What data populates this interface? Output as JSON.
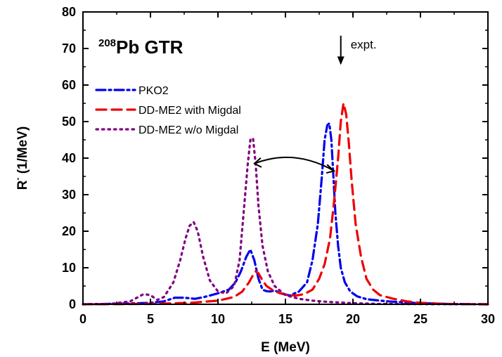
{
  "chart_data": {
    "type": "line",
    "title": {
      "superscript": "208",
      "text": "Pb GTR"
    },
    "xlabel": "E (MeV)",
    "ylabel": "R",
    "ylabel_superscript": "-",
    "ylabel_unit": " (1/MeV)",
    "xlim": [
      0,
      30
    ],
    "ylim": [
      0,
      80
    ],
    "xticks": [
      "0",
      "5",
      "10",
      "15",
      "20",
      "25",
      "30"
    ],
    "yticks": [
      "0",
      "10",
      "20",
      "30",
      "40",
      "50",
      "60",
      "70",
      "80"
    ],
    "legend_position": "upper-left",
    "grid": false,
    "annotations": [
      {
        "type": "arrow-down",
        "text": "expt.",
        "x": 19.1,
        "y_from": 73.5,
        "y_to": 65.5
      },
      {
        "type": "double-arrow",
        "from": [
          12.7,
          38.5
        ],
        "to": [
          18.6,
          36.5
        ]
      }
    ],
    "series": [
      {
        "name": "PKO2",
        "color": "#0000ee",
        "dash": "dashdot",
        "x": [
          0,
          3,
          5,
          6,
          6.8,
          7.5,
          8.3,
          9,
          10,
          10.8,
          11.3,
          11.7,
          12.1,
          12.4,
          12.7,
          13,
          13.3,
          13.6,
          13.9,
          14.2,
          14.7,
          15.3,
          16,
          16.6,
          17,
          17.4,
          17.7,
          17.9,
          18.1,
          18.25,
          18.4,
          18.55,
          18.7,
          18.9,
          19.1,
          19.4,
          19.8,
          20.3,
          21,
          22,
          23,
          24,
          25,
          27,
          30
        ],
        "values": [
          0,
          0.2,
          0.4,
          0.8,
          1.8,
          1.8,
          1.5,
          2,
          3,
          4,
          6,
          9,
          13,
          15,
          12,
          7,
          4,
          3.6,
          3.5,
          3.8,
          3,
          2.4,
          3.5,
          6,
          12,
          22,
          35,
          45,
          49,
          49.5,
          45,
          35,
          25,
          16,
          10,
          6,
          3.5,
          2.2,
          1.4,
          1,
          0.7,
          0.5,
          0.3,
          0.1,
          0
        ]
      },
      {
        "name": "DD-ME2 with Migdal",
        "color": "#ee0000",
        "dash": "dash",
        "x": [
          0,
          5,
          8,
          10,
          11.2,
          11.8,
          12.3,
          12.6,
          12.8,
          13,
          13.3,
          13.6,
          14,
          14.6,
          15.2,
          15.8,
          16.4,
          17,
          17.5,
          17.9,
          18.3,
          18.6,
          18.9,
          19.1,
          19.3,
          19.5,
          19.7,
          19.9,
          20.2,
          20.6,
          21,
          21.5,
          22,
          23,
          24,
          25,
          27,
          30
        ],
        "values": [
          0,
          0.1,
          0.4,
          1,
          2,
          3.5,
          6,
          8,
          9,
          8.5,
          6.5,
          5,
          4,
          3,
          2.5,
          2.4,
          2.8,
          4,
          7,
          11,
          18,
          28,
          40,
          50,
          55,
          52,
          44,
          34,
          22,
          13,
          7,
          4,
          2.5,
          1.5,
          0.8,
          0.4,
          0.1,
          0
        ]
      },
      {
        "name": "DD-ME2 w/o Migdal",
        "color": "#800080",
        "dash": "dot",
        "x": [
          0,
          2,
          3.5,
          4.5,
          5,
          5.5,
          6,
          6.7,
          7.2,
          7.6,
          7.9,
          8.2,
          8.5,
          8.9,
          9.4,
          10,
          10.6,
          11.2,
          11.6,
          11.9,
          12.2,
          12.4,
          12.6,
          12.8,
          13,
          13.3,
          13.7,
          14.2,
          15,
          16,
          17,
          18,
          20,
          22,
          25,
          30
        ],
        "values": [
          0,
          0.1,
          0.8,
          2.8,
          2.5,
          1.2,
          2,
          6,
          12,
          18,
          21.5,
          22.5,
          20,
          13,
          6.5,
          3.5,
          3,
          5,
          12,
          25,
          38,
          45,
          45.5,
          38,
          27,
          16,
          9,
          5,
          2.5,
          1.5,
          1,
          0.7,
          0.3,
          0.1,
          0.05,
          0
        ]
      }
    ]
  }
}
